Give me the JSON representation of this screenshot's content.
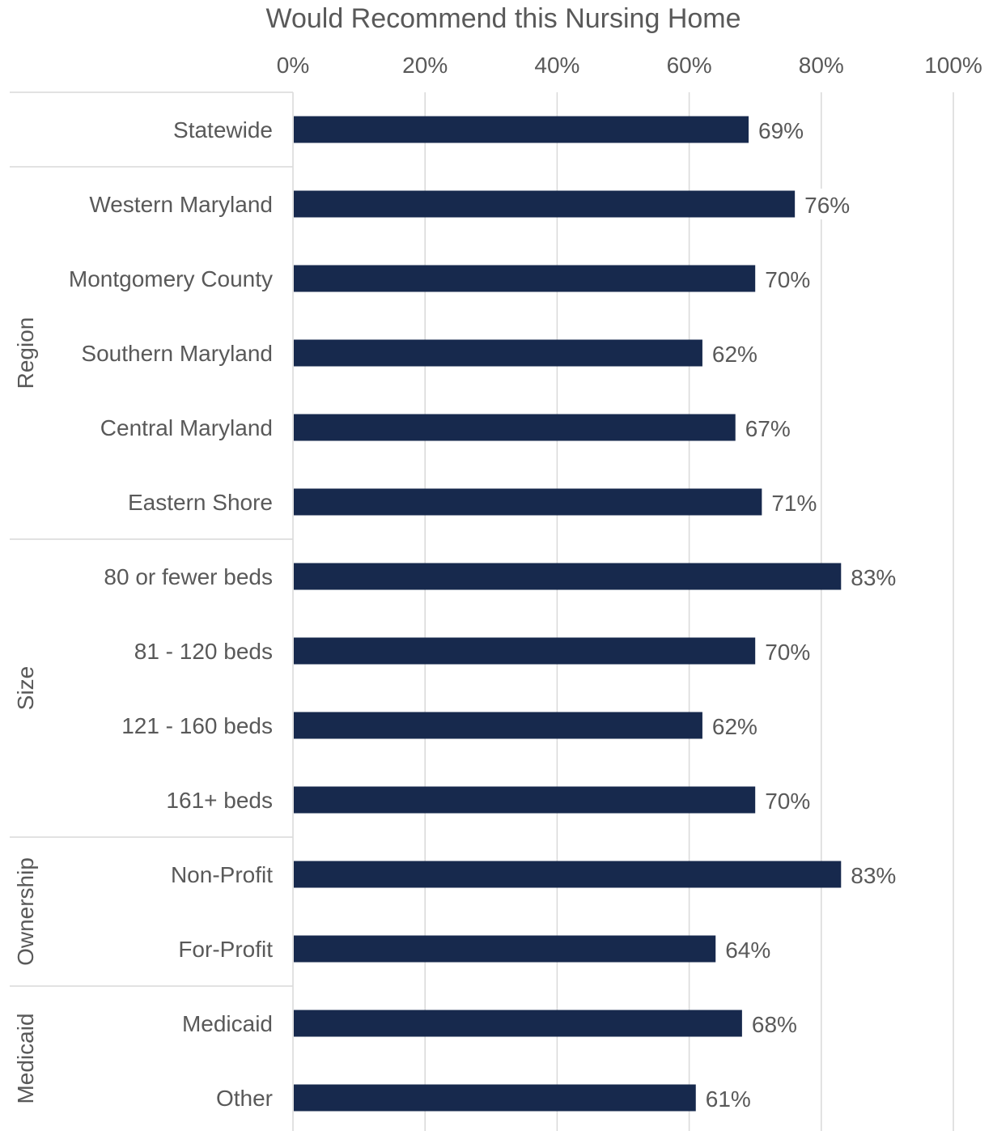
{
  "chart_data": {
    "type": "bar",
    "orientation": "horizontal",
    "title": "Would Recommend this Nursing Home",
    "xlabel": "",
    "ylabel": "",
    "xlim": [
      0,
      100
    ],
    "x_ticks": [
      "0%",
      "20%",
      "40%",
      "60%",
      "80%",
      "100%"
    ],
    "x_axis_position": "top",
    "grid": "vertical",
    "legend": "none",
    "categories": [
      "Statewide",
      "Western Maryland",
      "Montgomery County",
      "Southern Maryland",
      "Central Maryland",
      "Eastern Shore",
      "80 or fewer beds",
      "81 - 120 beds",
      "121 - 160 beds",
      "161+ beds",
      "Non-Profit",
      "For-Profit",
      "Medicaid",
      "Other"
    ],
    "values": [
      69,
      76,
      70,
      62,
      67,
      71,
      83,
      70,
      62,
      70,
      83,
      64,
      68,
      61
    ],
    "data_labels": [
      "69%",
      "76%",
      "70%",
      "62%",
      "67%",
      "71%",
      "83%",
      "70%",
      "62%",
      "70%",
      "83%",
      "64%",
      "68%",
      "61%"
    ],
    "groups": [
      {
        "name": "",
        "count": 1
      },
      {
        "name": "Region",
        "count": 5
      },
      {
        "name": "Size",
        "count": 4
      },
      {
        "name": "Ownership",
        "count": 2
      },
      {
        "name": "Medicaid",
        "count": 2
      }
    ],
    "colors": {
      "bar": "#17294D",
      "text": "#595959",
      "data_label": "#404040",
      "grid": "#D9D9D9"
    }
  }
}
